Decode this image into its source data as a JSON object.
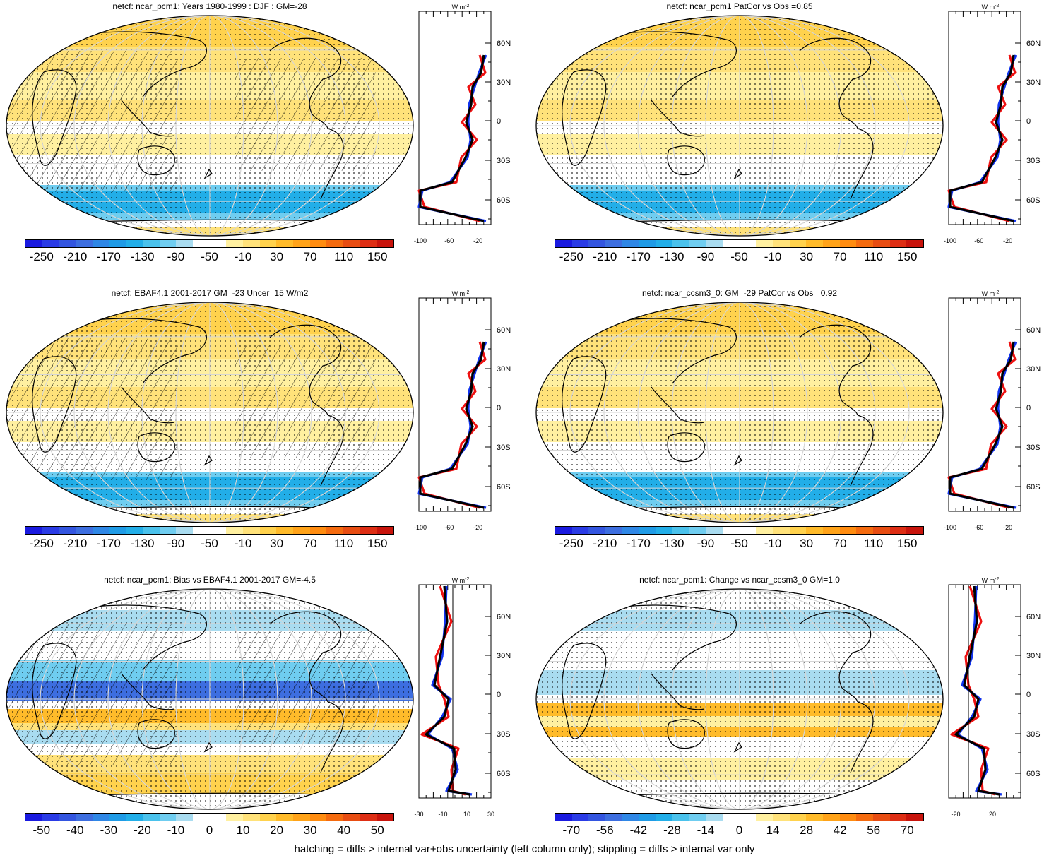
{
  "caption": "hatching = diffs > internal var+obs uncertainty (left column only); stippling = diffs > internal var only",
  "unit_label": "W m",
  "unit_sup": "-2",
  "lat_ticks": [
    "60N",
    "30N",
    "0",
    "30S",
    "60S"
  ],
  "colors": {
    "full": [
      "#1a1ae0",
      "#2a3be6",
      "#3355e0",
      "#3d6ee0",
      "#2f87e6",
      "#1f9be6",
      "#22aee8",
      "#4ac2ec",
      "#6fcdf0",
      "#a9dcf0",
      "#ffffff",
      "#ffffff",
      "#fff0a0",
      "#ffe27a",
      "#ffd24d",
      "#ffbb2a",
      "#ffa319",
      "#ff8c10",
      "#f56b0f",
      "#e84d12",
      "#de2e14",
      "#c8140c"
    ],
    "bias": [
      "#1a1ae0",
      "#2a3be6",
      "#3355e0",
      "#3d6ee0",
      "#2f87e6",
      "#1f9be6",
      "#22aee8",
      "#4ac2ec",
      "#6fcdf0",
      "#a9dcf0",
      "#ffffff",
      "#ffffff",
      "#fff0a0",
      "#ffe27a",
      "#ffd24d",
      "#ffbb2a",
      "#ffa319",
      "#ff8c10",
      "#f56b0f",
      "#e84d12",
      "#de2e14",
      "#c8140c"
    ],
    "line_red": "#ee1111",
    "line_blue": "#1133ee",
    "line_black": "#000000"
  },
  "panels": [
    {
      "title": "netcf: ncar_pcm1: Years 1980-1999 : DJF : GM=-28",
      "colorbar_labels": [
        "-250",
        "-210",
        "-170",
        "-130",
        "-90",
        "-50",
        "-10",
        "30",
        "70",
        "110",
        "150"
      ],
      "x_ticks": [
        "-100",
        "-60",
        "-20"
      ]
    },
    {
      "title": "netcf: ncar_pcm1 PatCor vs Obs =0.85",
      "colorbar_labels": [
        "-250",
        "-210",
        "-170",
        "-130",
        "-90",
        "-50",
        "-10",
        "30",
        "70",
        "110",
        "150"
      ],
      "x_ticks": [
        "-100",
        "-60",
        "-20"
      ]
    },
    {
      "title": "netcf: EBAF4.1 2001-2017 GM=-23 Uncer=15 W/m2",
      "colorbar_labels": [
        "-250",
        "-210",
        "-170",
        "-130",
        "-90",
        "-50",
        "-10",
        "30",
        "70",
        "110",
        "150"
      ],
      "x_ticks": [
        "-100",
        "-60",
        "-20"
      ]
    },
    {
      "title": "netcf: ncar_ccsm3_0: GM=-29 PatCor vs Obs =0.92",
      "colorbar_labels": [
        "-250",
        "-210",
        "-170",
        "-130",
        "-90",
        "-50",
        "-10",
        "30",
        "70",
        "110",
        "150"
      ],
      "x_ticks": [
        "-100",
        "-60",
        "-20"
      ]
    },
    {
      "title": "netcf: ncar_pcm1: Bias vs EBAF4.1 2001-2017 GM=-4.5",
      "colorbar_labels": [
        "-50",
        "-40",
        "-30",
        "-20",
        "-10",
        "0",
        "10",
        "20",
        "30",
        "40",
        "50"
      ],
      "x_ticks": [
        "-30",
        "-10",
        "10",
        "30"
      ]
    },
    {
      "title": "netcf: ncar_pcm1: Change vs ncar_ccsm3_0 GM=1.0",
      "colorbar_labels": [
        "-70",
        "-56",
        "-42",
        "-28",
        "-14",
        "0",
        "14",
        "28",
        "42",
        "56",
        "70"
      ],
      "x_ticks": [
        "-20",
        "20"
      ]
    }
  ]
}
